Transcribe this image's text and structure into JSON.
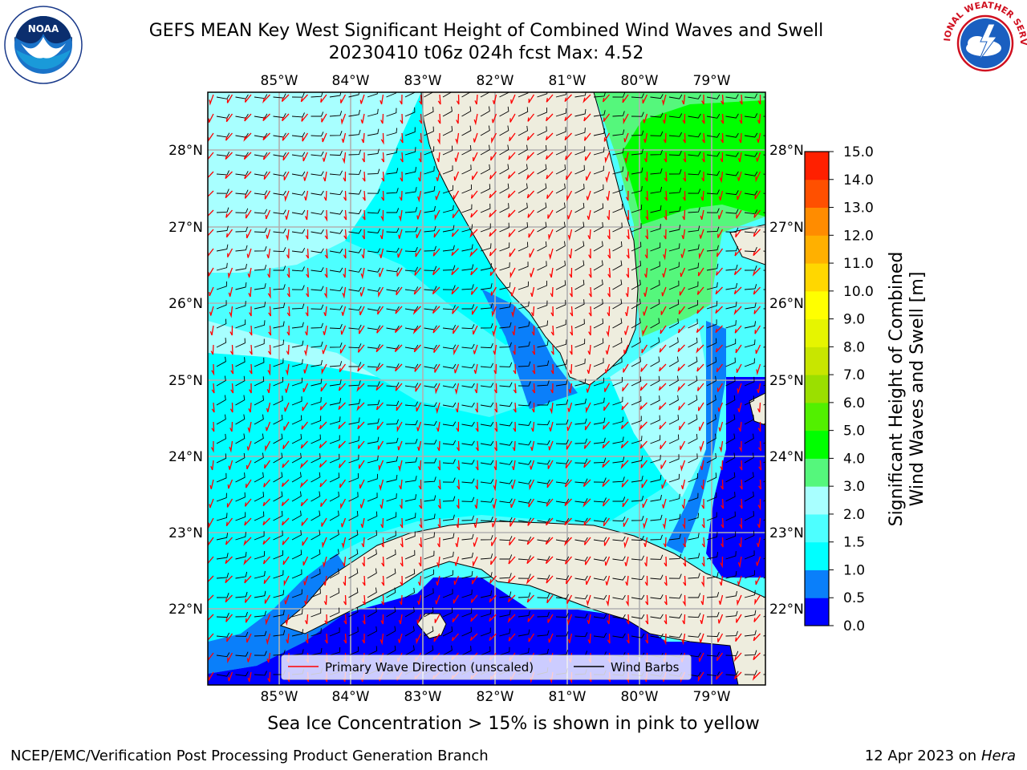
{
  "title_line1": "GEFS MEAN Key West Significant Height of Combined Wind Waves and Swell",
  "title_line2": "20230410 t06z 024h fcst   Max: 4.52",
  "lon_labels": [
    "85°W",
    "84°W",
    "83°W",
    "82°W",
    "81°W",
    "80°W",
    "79°W"
  ],
  "lat_labels": [
    "28°N",
    "27°N",
    "26°N",
    "25°N",
    "24°N",
    "23°N",
    "22°N"
  ],
  "map_extent": {
    "lon_min": -86.0,
    "lon_max": -78.3,
    "lat_min": 21.0,
    "lat_max": 28.8
  },
  "legend": {
    "primary_wave": "Primary Wave Direction (unscaled)",
    "wind_barbs": "Wind Barbs"
  },
  "colorbar": {
    "label_line1": "Significant Height of Combined",
    "label_line2": "Wind Waves and Swell [m]",
    "levels": [
      "0.0",
      "0.5",
      "1.0",
      "1.5",
      "2.0",
      "3.0",
      "4.0",
      "5.0",
      "6.0",
      "7.0",
      "8.0",
      "9.0",
      "10.0",
      "11.0",
      "12.0",
      "13.0",
      "14.0",
      "15.0"
    ],
    "colors": [
      "#0000ff",
      "#0a7ffa",
      "#00ffff",
      "#4dffff",
      "#a8ffff",
      "#55f77c",
      "#00ff00",
      "#52f000",
      "#9bdf00",
      "#c8e600",
      "#e6f500",
      "#ffff00",
      "#ffd700",
      "#ffb000",
      "#ff8c00",
      "#ff5000",
      "#ff2000"
    ]
  },
  "ice_note": "Sea Ice Concentration > 15% is shown in pink to yellow",
  "footer_left": "NCEP/EMC/Verification Post Processing Product Generation Branch",
  "footer_date": "12 Apr 2023 on ",
  "footer_host": "Hera",
  "logos": {
    "left": "NOAA",
    "right": "NATIONAL WEATHER SERVICE"
  },
  "colors": {
    "land": "#eeedde",
    "grid": "#b0b0b0",
    "wave_arrow": "#ff0000",
    "wind_barb": "#000000"
  }
}
